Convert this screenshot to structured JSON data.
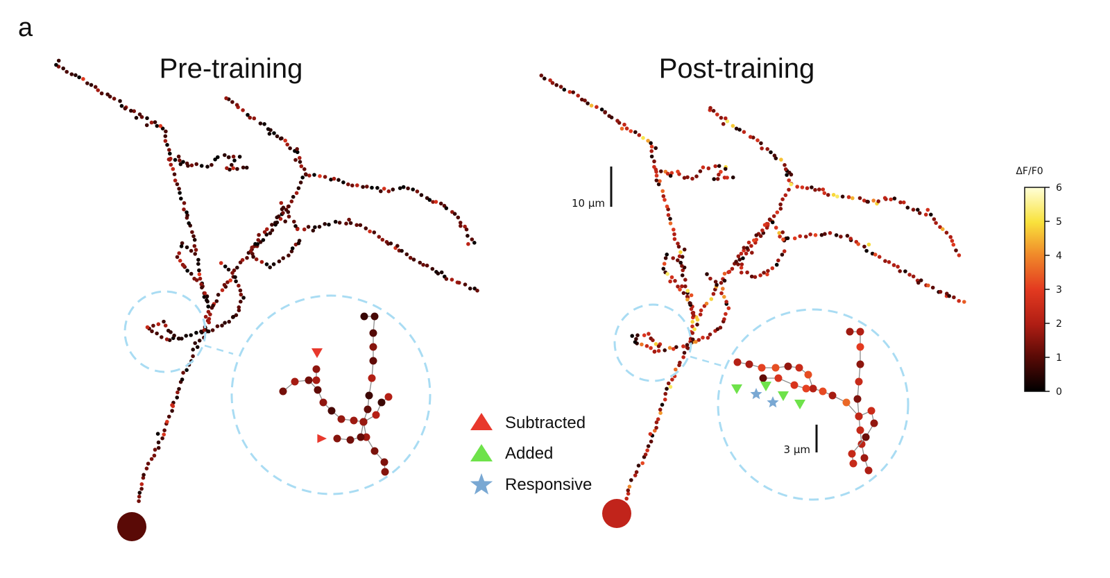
{
  "panel_letter": "a",
  "panels": [
    {
      "title": "Pre-training"
    },
    {
      "title": "Post-training"
    }
  ],
  "scale_bars": {
    "main": "10 µm",
    "inset": "3 µm"
  },
  "legend": [
    {
      "label": "Subtracted",
      "marker": "triangle-up",
      "color": "#e8382c"
    },
    {
      "label": "Added",
      "marker": "triangle-up",
      "color": "#6ee24a"
    },
    {
      "label": "Responsive",
      "marker": "star",
      "color": "#79a8d3"
    }
  ],
  "colorbar": {
    "label": "ΔF/F0",
    "min": 0,
    "max": 6,
    "ticks": [
      "0",
      "1",
      "2",
      "3",
      "4",
      "5",
      "6"
    ],
    "colormap": [
      "#000000",
      "#5a0a06",
      "#b01e14",
      "#e33a20",
      "#f08a2a",
      "#f9e23c",
      "#ffffd8"
    ]
  },
  "colors": {
    "zoom_circle": "#a9dcf3",
    "pre_soma": "#5a0a06",
    "post_soma": "#c1241b"
  }
}
